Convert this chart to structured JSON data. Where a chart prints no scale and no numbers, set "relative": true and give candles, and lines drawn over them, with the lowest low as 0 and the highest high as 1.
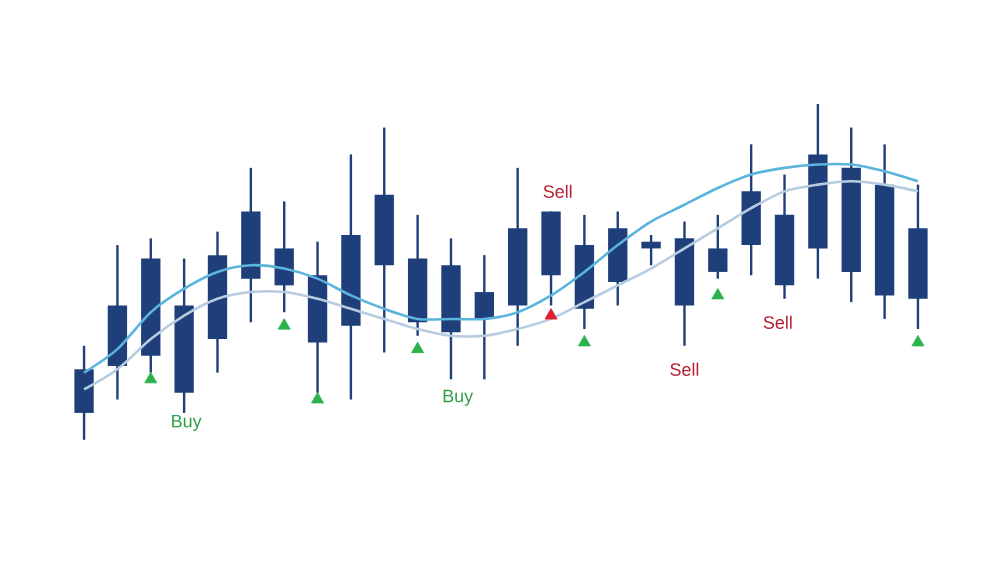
{
  "chart_data": {
    "type": "candlestick",
    "relative": true,
    "color": "#1f3f7a",
    "categories": [
      null,
      null,
      null,
      null,
      null,
      null,
      null,
      null,
      null,
      null,
      null,
      null,
      null,
      null,
      null,
      null,
      null,
      null,
      null,
      null,
      null,
      null,
      null,
      null,
      null,
      null
    ],
    "ohlc": [
      [
        0.08,
        0.28,
        0,
        0.21
      ],
      [
        0.22,
        0.58,
        0.12,
        0.4
      ],
      [
        0.25,
        0.6,
        0.2,
        0.54
      ],
      [
        0.14,
        0.54,
        0.08,
        0.4
      ],
      [
        0.3,
        0.62,
        0.2,
        0.55
      ],
      [
        0.48,
        0.81,
        0.35,
        0.68
      ],
      [
        0.46,
        0.71,
        0.38,
        0.57
      ],
      [
        0.29,
        0.59,
        0.14,
        0.49
      ],
      [
        0.34,
        0.85,
        0.12,
        0.61
      ],
      [
        0.52,
        0.93,
        0.26,
        0.73
      ],
      [
        0.35,
        0.67,
        0.31,
        0.54
      ],
      [
        0.32,
        0.6,
        0.18,
        0.52
      ],
      [
        0.36,
        0.55,
        0.18,
        0.44
      ],
      [
        0.4,
        0.81,
        0.28,
        0.63
      ],
      [
        0.49,
        0.68,
        0.4,
        0.68
      ],
      [
        0.39,
        0.67,
        0.33,
        0.58
      ],
      [
        0.47,
        0.68,
        0.4,
        0.63
      ],
      [
        0.57,
        0.61,
        0.52,
        0.59
      ],
      [
        0.4,
        0.65,
        0.28,
        0.6
      ],
      [
        0.5,
        0.67,
        0.48,
        0.57
      ],
      [
        0.58,
        0.88,
        0.49,
        0.74
      ],
      [
        0.46,
        0.79,
        0.42,
        0.67
      ],
      [
        0.57,
        1.0,
        0.48,
        0.85
      ],
      [
        0.5,
        0.93,
        0.41,
        0.81
      ],
      [
        0.43,
        0.88,
        0.36,
        0.76
      ],
      [
        0.42,
        0.76,
        0.33,
        0.63
      ]
    ],
    "series": [
      {
        "type": "line",
        "color": "#5ab4dc",
        "values": [
          0.2,
          0.27,
          0.38,
          0.45,
          0.5,
          0.52,
          0.51,
          0.48,
          0.43,
          0.39,
          0.36,
          0.36,
          0.36,
          0.38,
          0.43,
          0.5,
          0.58,
          0.65,
          0.7,
          0.75,
          0.79,
          0.81,
          0.82,
          0.82,
          0.8,
          0.77
        ]
      },
      {
        "type": "line",
        "color": "#b8cce0",
        "values": [
          0.15,
          0.21,
          0.3,
          0.37,
          0.42,
          0.44,
          0.44,
          0.42,
          0.39,
          0.36,
          0.33,
          0.31,
          0.31,
          0.33,
          0.36,
          0.41,
          0.46,
          0.51,
          0.57,
          0.63,
          0.69,
          0.74,
          0.76,
          0.77,
          0.76,
          0.74
        ]
      },
      {
        "type": "scatter",
        "marker": "triangle",
        "color": "#2bb24c",
        "values": [
          null,
          null,
          0.18,
          null,
          null,
          null,
          0.34,
          0.12,
          null,
          null,
          0.27,
          null,
          null,
          null,
          null,
          0.29,
          null,
          null,
          null,
          0.43,
          null,
          null,
          null,
          null,
          null,
          0.29
        ]
      },
      {
        "type": "scatter",
        "marker": "triangle",
        "color": "#e02030",
        "values": [
          null,
          null,
          null,
          null,
          null,
          null,
          null,
          null,
          null,
          null,
          null,
          null,
          null,
          null,
          0.37,
          null,
          null,
          null,
          null,
          null,
          null,
          null,
          null,
          null,
          null,
          null
        ]
      }
    ],
    "annotations": [
      "Buy",
      "Buy",
      "Sell",
      "Sell",
      "Sell"
    ]
  }
}
